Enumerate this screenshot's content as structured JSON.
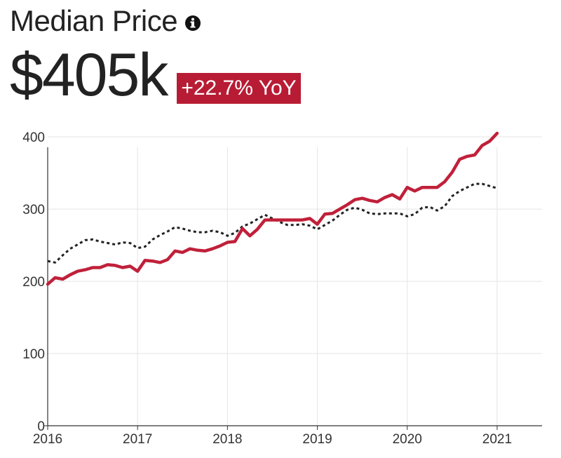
{
  "header": {
    "title": "Median Price",
    "info_icon": "info-circle-icon",
    "value": "$405k",
    "change_badge": "+22.7% YoY",
    "badge_color": "#b81c34"
  },
  "chart_data": {
    "type": "line",
    "title": "",
    "xlabel": "",
    "ylabel": "",
    "x_ticks": [
      "2016",
      "2017",
      "2018",
      "2019",
      "2020",
      "2021"
    ],
    "y_ticks": [
      "0",
      "100",
      "200",
      "300",
      "400"
    ],
    "xlim": [
      2016,
      2021.5
    ],
    "ylim": [
      0,
      405
    ],
    "grid": true,
    "legend": "none",
    "series": [
      {
        "color": "#c0203a",
        "style": "solid",
        "x": [
          2016.0,
          2016.083,
          2016.167,
          2016.25,
          2016.333,
          2016.417,
          2016.5,
          2016.583,
          2016.667,
          2016.75,
          2016.833,
          2016.917,
          2017.0,
          2017.083,
          2017.167,
          2017.25,
          2017.333,
          2017.417,
          2017.5,
          2017.583,
          2017.667,
          2017.75,
          2017.833,
          2017.917,
          2018.0,
          2018.083,
          2018.167,
          2018.25,
          2018.333,
          2018.417,
          2018.5,
          2018.583,
          2018.667,
          2018.75,
          2018.833,
          2018.917,
          2019.0,
          2019.083,
          2019.167,
          2019.25,
          2019.333,
          2019.417,
          2019.5,
          2019.583,
          2019.667,
          2019.75,
          2019.833,
          2019.917,
          2020.0,
          2020.083,
          2020.167,
          2020.25,
          2020.333,
          2020.417,
          2020.5,
          2020.583,
          2020.667,
          2020.75,
          2020.833,
          2020.917,
          2021.0
        ],
        "values": [
          196,
          205,
          203,
          209,
          214,
          216,
          219,
          219,
          223,
          222,
          219,
          221,
          214,
          229,
          228,
          226,
          230,
          242,
          240,
          245,
          243,
          242,
          245,
          249,
          254,
          255,
          273,
          263,
          272,
          285,
          285,
          285,
          285,
          285,
          285,
          287,
          279,
          293,
          294,
          300,
          306,
          313,
          315,
          312,
          310,
          316,
          320,
          314,
          330,
          325,
          330,
          330,
          330,
          338,
          351,
          369,
          373,
          375,
          388,
          394,
          405
        ]
      },
      {
        "color": "#222222",
        "style": "dotted",
        "x": [
          2016.0,
          2016.083,
          2016.167,
          2016.25,
          2016.333,
          2016.417,
          2016.5,
          2016.583,
          2016.667,
          2016.75,
          2016.833,
          2016.917,
          2017.0,
          2017.083,
          2017.167,
          2017.25,
          2017.333,
          2017.417,
          2017.5,
          2017.583,
          2017.667,
          2017.75,
          2017.833,
          2017.917,
          2018.0,
          2018.083,
          2018.167,
          2018.25,
          2018.333,
          2018.417,
          2018.5,
          2018.583,
          2018.667,
          2018.75,
          2018.833,
          2018.917,
          2019.0,
          2019.083,
          2019.167,
          2019.25,
          2019.333,
          2019.417,
          2019.5,
          2019.583,
          2019.667,
          2019.75,
          2019.833,
          2019.917,
          2020.0,
          2020.083,
          2020.167,
          2020.25,
          2020.333,
          2020.417,
          2020.5,
          2020.583,
          2020.667,
          2020.75,
          2020.833,
          2020.917,
          2021.0
        ],
        "values": [
          228,
          226,
          236,
          245,
          251,
          257,
          258,
          255,
          253,
          251,
          254,
          253,
          246,
          248,
          258,
          264,
          269,
          275,
          273,
          270,
          268,
          268,
          270,
          268,
          263,
          267,
          276,
          280,
          286,
          292,
          287,
          282,
          278,
          278,
          279,
          277,
          272,
          278,
          284,
          292,
          299,
          302,
          299,
          294,
          293,
          294,
          294,
          294,
          290,
          293,
          302,
          303,
          298,
          304,
          318,
          325,
          330,
          335,
          335,
          332,
          329
        ]
      }
    ]
  }
}
